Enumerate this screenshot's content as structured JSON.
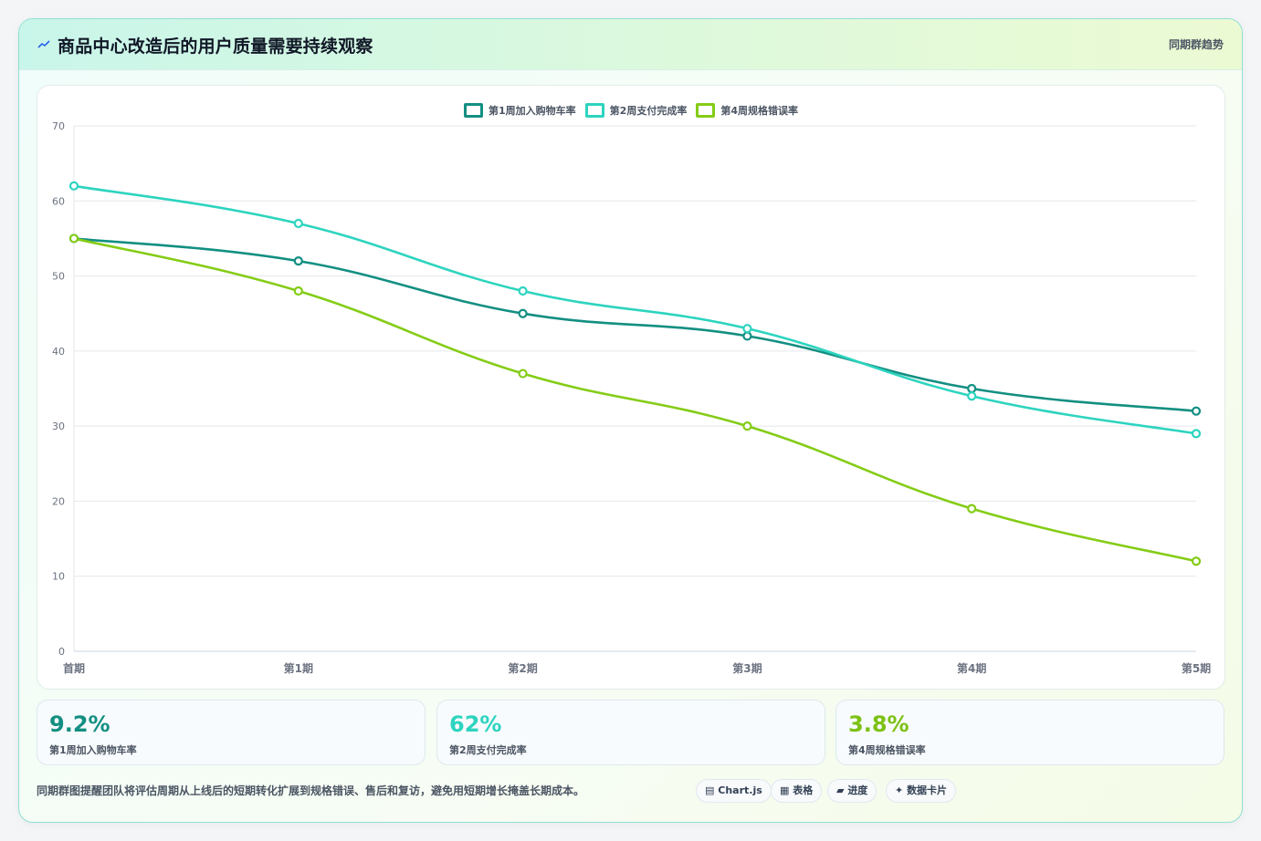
{
  "header": {
    "icon": "sparkline-icon",
    "title": "商品中心改造后的用户质量需要持续观察",
    "tag": "同期群趋势"
  },
  "chart_data": {
    "type": "line",
    "categories": [
      "首期",
      "第1期",
      "第2期",
      "第3期",
      "第4期",
      "第5期"
    ],
    "series": [
      {
        "name": "第1周加入购物车率",
        "color": "#138f82",
        "values": [
          55,
          52,
          45,
          42,
          35,
          32
        ]
      },
      {
        "name": "第2周支付完成率",
        "color": "#2dd4bf",
        "values": [
          62,
          57,
          48,
          43,
          34,
          29
        ]
      },
      {
        "name": "第4周规格错误率",
        "color": "#84cc16",
        "values": [
          55,
          48,
          37,
          30,
          19,
          12
        ]
      }
    ],
    "ylim": [
      0,
      70
    ],
    "yticks": [
      0,
      10,
      20,
      30,
      40,
      50,
      60,
      70
    ],
    "grid": true,
    "legend": "top-center",
    "title": "",
    "xlabel": "",
    "ylabel": ""
  },
  "kpis": [
    {
      "value": "9.2%",
      "label": "第1周加入购物车率",
      "color": "#138f82"
    },
    {
      "value": "62%",
      "label": "第2周支付完成率",
      "color": "#2dd4bf"
    },
    {
      "value": "3.8%",
      "label": "第4周规格错误率",
      "color": "#7cc114"
    }
  ],
  "footnote": "同期群图提醒团队将评估周期从上线后的短期转化扩展到规格错误、售后和复访，避免用短期增长掩盖长期成本。",
  "pills": [
    {
      "icon": "chart-icon",
      "glyph": "▤",
      "label": "Chart.js"
    },
    {
      "icon": "table-icon",
      "glyph": "▦",
      "label": "表格"
    },
    {
      "icon": "progress-icon",
      "glyph": "▰",
      "label": "进度"
    },
    {
      "icon": "sparkle-icon",
      "glyph": "✦",
      "label": "数据卡片"
    }
  ]
}
